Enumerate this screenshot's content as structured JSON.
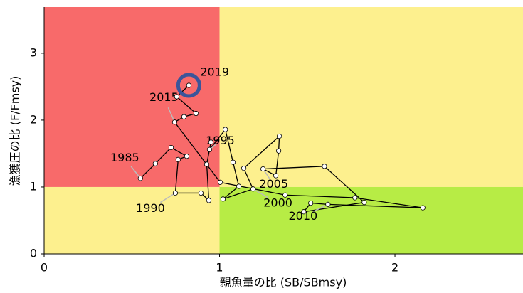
{
  "chart_data": {
    "type": "kobe",
    "xlabel": "親魚量の比 (SB/SBmsy)",
    "ylabel": "漁獲圧の比 (F/Fmsy)",
    "xlim": [
      0,
      2.73
    ],
    "ylim": [
      0,
      3.69
    ],
    "xticks": [
      0,
      1,
      2
    ],
    "yticks": [
      0,
      1,
      2,
      3
    ],
    "x_threshold": 1,
    "y_threshold": 1,
    "zone_colors": {
      "overfished_overfishing": "#f86a6a",
      "caution": "#fdf08e",
      "healthy": "#b7ec45"
    },
    "line_color": "#000000",
    "marker_color": "#ffffff",
    "highlight_color": "#3b559a",
    "x": [
      0.549,
      0.634,
      0.724,
      0.813,
      0.764,
      0.748,
      0.894,
      0.939,
      0.927,
      0.951,
      0.943,
      1.033,
      1.077,
      1.11,
      1.02,
      1.191,
      1.138,
      1.341,
      1.337,
      1.321,
      1.248,
      1.598,
      1.825,
      1.48,
      1.52,
      1.618,
      2.159,
      1.772,
      1.374,
      1.004,
      0.744,
      0.797,
      0.866,
      0.756,
      0.825
    ],
    "values": [
      1.13,
      1.35,
      1.59,
      1.46,
      1.41,
      0.91,
      0.91,
      0.8,
      1.34,
      1.67,
      1.56,
      1.86,
      1.37,
      1.01,
      0.82,
      0.97,
      1.28,
      1.76,
      1.54,
      1.17,
      1.27,
      1.31,
      0.77,
      0.63,
      0.76,
      0.74,
      0.69,
      0.84,
      0.88,
      1.07,
      1.97,
      2.05,
      2.1,
      2.35,
      2.52
    ],
    "point_labels": [
      "1985",
      null,
      null,
      null,
      null,
      "1990",
      null,
      null,
      null,
      null,
      "1995",
      null,
      null,
      null,
      null,
      "2000",
      null,
      null,
      null,
      null,
      "2005",
      null,
      null,
      null,
      null,
      "2010",
      null,
      null,
      null,
      null,
      "2015",
      null,
      null,
      null,
      "2019"
    ]
  }
}
